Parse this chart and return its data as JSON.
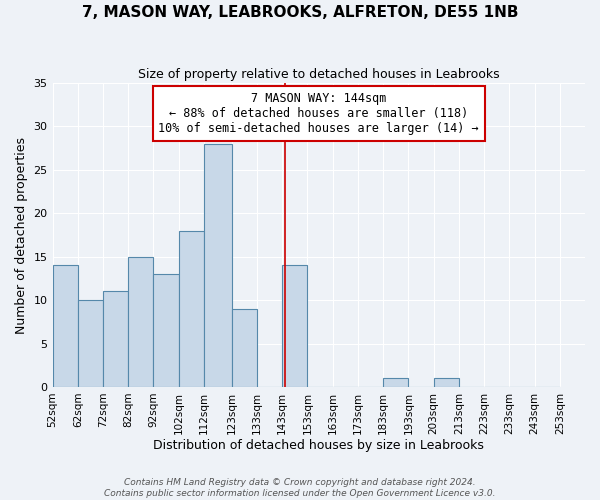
{
  "title": "7, MASON WAY, LEABROOKS, ALFRETON, DE55 1NB",
  "subtitle": "Size of property relative to detached houses in Leabrooks",
  "xlabel": "Distribution of detached houses by size in Leabrooks",
  "ylabel": "Number of detached properties",
  "bin_labels": [
    "52sqm",
    "62sqm",
    "72sqm",
    "82sqm",
    "92sqm",
    "102sqm",
    "112sqm",
    "123sqm",
    "133sqm",
    "143sqm",
    "153sqm",
    "163sqm",
    "173sqm",
    "183sqm",
    "193sqm",
    "203sqm",
    "213sqm",
    "223sqm",
    "233sqm",
    "243sqm",
    "253sqm"
  ],
  "bin_edges": [
    52,
    62,
    72,
    82,
    92,
    102,
    112,
    123,
    133,
    143,
    153,
    163,
    173,
    183,
    193,
    203,
    213,
    223,
    233,
    243,
    253
  ],
  "bar_values": [
    14,
    10,
    11,
    15,
    13,
    18,
    28,
    9,
    0,
    14,
    0,
    0,
    0,
    1,
    0,
    1,
    0,
    0,
    0,
    0
  ],
  "bar_color": "#c8d8e8",
  "bar_edge_color": "#5588aa",
  "reference_line_x": 144,
  "reference_line_color": "#cc0000",
  "annotation_title": "7 MASON WAY: 144sqm",
  "annotation_line1": "← 88% of detached houses are smaller (118)",
  "annotation_line2": "10% of semi-detached houses are larger (14) →",
  "annotation_box_color": "#ffffff",
  "annotation_box_edge": "#cc0000",
  "ylim": [
    0,
    35
  ],
  "yticks": [
    0,
    5,
    10,
    15,
    20,
    25,
    30,
    35
  ],
  "footer1": "Contains HM Land Registry data © Crown copyright and database right 2024.",
  "footer2": "Contains public sector information licensed under the Open Government Licence v3.0.",
  "background_color": "#eef2f7",
  "title_fontsize": 11,
  "subtitle_fontsize": 9,
  "ylabel_fontsize": 9,
  "xlabel_fontsize": 9
}
